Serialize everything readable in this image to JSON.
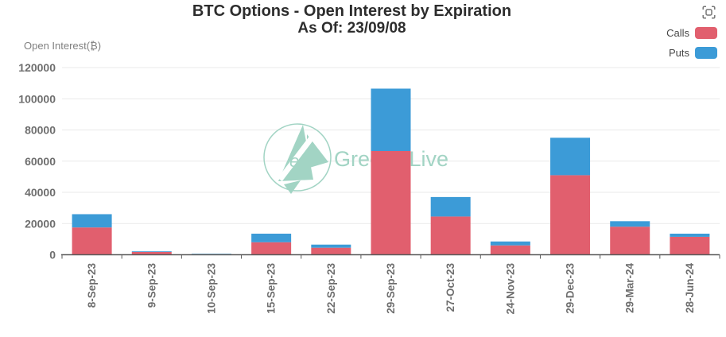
{
  "title": {
    "line1": "BTC Options - Open Interest by Expiration",
    "line2": "As Of: 23/09/08"
  },
  "y_axis": {
    "name": "Open Interest(₿)"
  },
  "legend": {
    "items": [
      {
        "label": "Calls",
        "color": "#e15f6e"
      },
      {
        "label": "Puts",
        "color": "#3c9bd7"
      }
    ]
  },
  "watermark": {
    "text": "Greeks.Live",
    "logo_letter": "e",
    "color": "#a2d4c4"
  },
  "colors": {
    "calls": "#e15f6e",
    "puts": "#3c9bd7",
    "grid": "#e9e9e9",
    "axis": "#5a5a5a",
    "tick_label": "#6e6e6e",
    "title": "#2d2d2d"
  },
  "chart_data": {
    "type": "bar",
    "stacked": true,
    "title": "BTC Options - Open Interest by Expiration",
    "subtitle": "As Of: 23/09/08",
    "ylabel": "Open Interest(₿)",
    "categories": [
      "8-Sep-23",
      "9-Sep-23",
      "10-Sep-23",
      "15-Sep-23",
      "22-Sep-23",
      "29-Sep-23",
      "27-Oct-23",
      "24-Nov-23",
      "29-Dec-23",
      "29-Mar-24",
      "28-Jun-24"
    ],
    "series": [
      {
        "name": "Calls",
        "color": "#e15f6e",
        "values": [
          17500,
          1800,
          300,
          8000,
          4500,
          66500,
          24500,
          6000,
          51000,
          18000,
          11500
        ]
      },
      {
        "name": "Puts",
        "color": "#3c9bd7",
        "values": [
          8500,
          400,
          300,
          5500,
          2000,
          40000,
          12500,
          2500,
          24000,
          3500,
          2000
        ]
      }
    ],
    "ylim": [
      0,
      120000
    ],
    "ytick_step": 20000,
    "ytick_labels": [
      "0",
      "20000",
      "40000",
      "60000",
      "80000",
      "100000",
      "120000"
    ],
    "grid": true,
    "legend_position": "top-right",
    "x_label_rotation": -90
  }
}
